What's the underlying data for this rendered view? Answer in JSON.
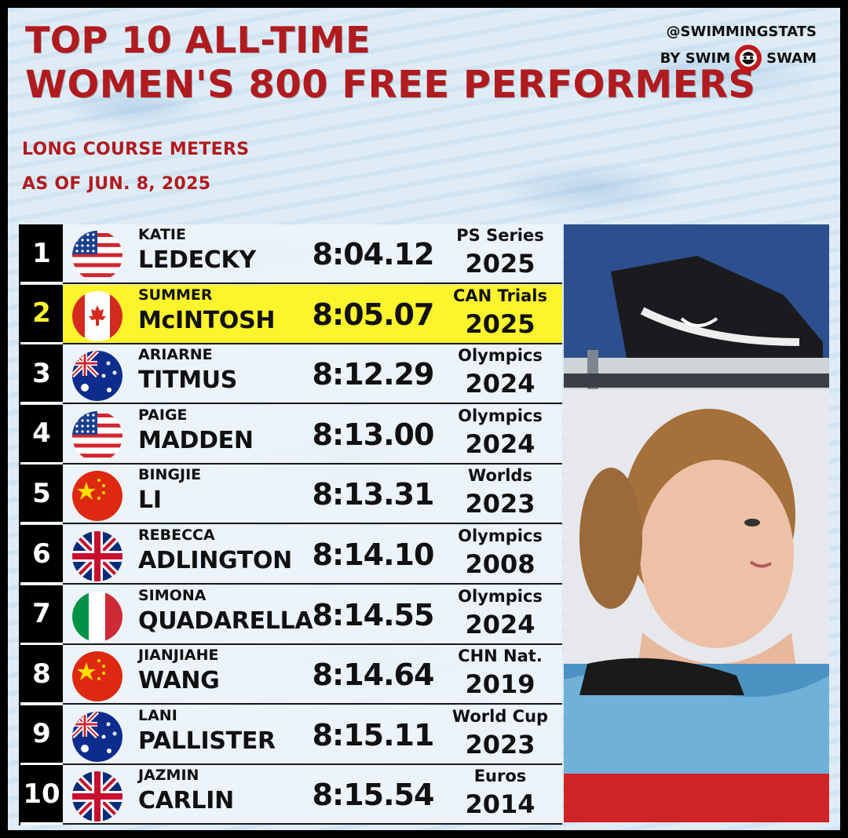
{
  "title": {
    "line1": "TOP 10 ALL-TIME",
    "line2": "WOMEN'S 800 FREE PERFORMERS"
  },
  "subtitle": {
    "course": "LONG COURSE METERS",
    "as_of": "AS OF JUN. 8, 2025"
  },
  "brand": {
    "handle": "@SWIMMINGSTATS",
    "by": "BY SWIM",
    "name": "SWAM",
    "logo_icon": "swimswam-logo"
  },
  "colors": {
    "title_red": "#b01b1f",
    "highlight_yellow": "#fdf42b",
    "rank_bg": "#000000"
  },
  "rows": [
    {
      "rank": "1",
      "first": "KATIE",
      "last": "LEDECKY",
      "time": "8:04.12",
      "meet": "PS Series",
      "year": "2025",
      "flag": "usa-flag-icon",
      "highlight": false
    },
    {
      "rank": "2",
      "first": "SUMMER",
      "last": "McINTOSH",
      "time": "8:05.07",
      "meet": "CAN Trials",
      "year": "2025",
      "flag": "canada-flag-icon",
      "highlight": true
    },
    {
      "rank": "3",
      "first": "ARIARNE",
      "last": "TITMUS",
      "time": "8:12.29",
      "meet": "Olympics",
      "year": "2024",
      "flag": "australia-flag-icon",
      "highlight": false
    },
    {
      "rank": "4",
      "first": "PAIGE",
      "last": "MADDEN",
      "time": "8:13.00",
      "meet": "Olympics",
      "year": "2024",
      "flag": "usa-flag-icon",
      "highlight": false
    },
    {
      "rank": "5",
      "first": "BINGJIE",
      "last": "LI",
      "time": "8:13.31",
      "meet": "Worlds",
      "year": "2023",
      "flag": "china-flag-icon",
      "highlight": false
    },
    {
      "rank": "6",
      "first": "REBECCA",
      "last": "ADLINGTON",
      "time": "8:14.10",
      "meet": "Olympics",
      "year": "2008",
      "flag": "uk-flag-icon",
      "highlight": false
    },
    {
      "rank": "7",
      "first": "SIMONA",
      "last": "QUADARELLA",
      "time": "8:14.55",
      "meet": "Olympics",
      "year": "2024",
      "flag": "italy-flag-icon",
      "highlight": false
    },
    {
      "rank": "8",
      "first": "JIANJIAHE",
      "last": "WANG",
      "time": "8:14.64",
      "meet": "CHN Nat.",
      "year": "2019",
      "flag": "china-flag-icon",
      "highlight": false
    },
    {
      "rank": "9",
      "first": "LANI",
      "last": "PALLISTER",
      "time": "8:15.11",
      "meet": "World Cup",
      "year": "2023",
      "flag": "australia-flag-icon",
      "highlight": false
    },
    {
      "rank": "10",
      "first": "JAZMIN",
      "last": "CARLIN",
      "time": "8:15.54",
      "meet": "Euros",
      "year": "2014",
      "flag": "uk-flag-icon",
      "highlight": false
    }
  ]
}
